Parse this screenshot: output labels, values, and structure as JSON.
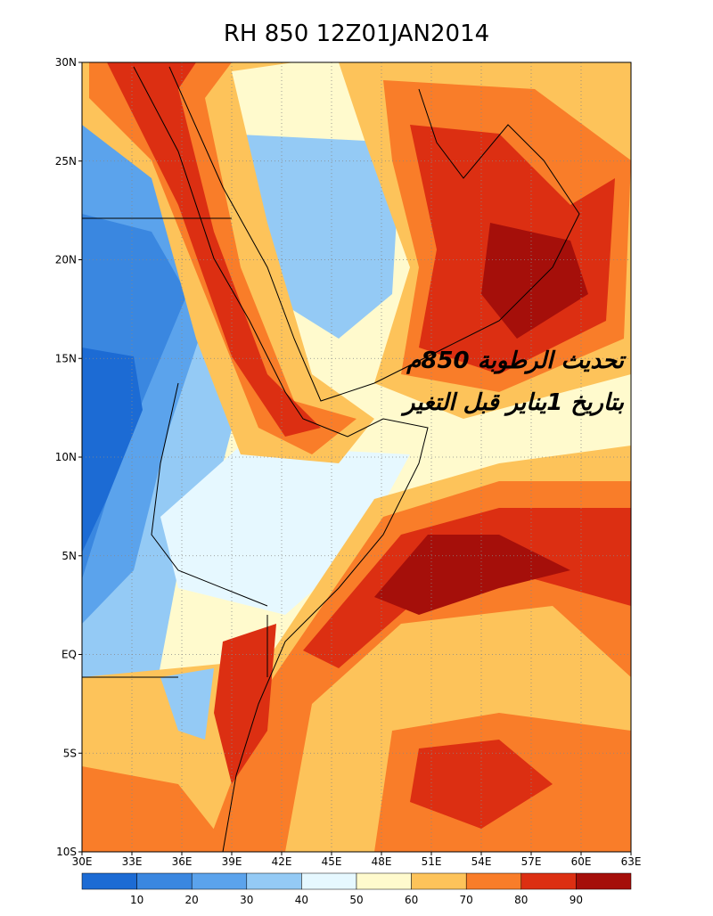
{
  "title": "RH 850 12Z01JAN2014",
  "lat_labels": [
    {
      "value": 30,
      "label": "30N"
    },
    {
      "value": 25,
      "label": "25N"
    },
    {
      "value": 20,
      "label": "20N"
    },
    {
      "value": 15,
      "label": "15N"
    },
    {
      "value": 10,
      "label": "10N"
    },
    {
      "value": 5,
      "label": "5N"
    },
    {
      "value": 0,
      "label": "EQ"
    },
    {
      "value": -5,
      "label": "5S"
    },
    {
      "value": -10,
      "label": "10S"
    }
  ],
  "lon_labels": [
    {
      "value": 30,
      "label": "30E"
    },
    {
      "value": 33,
      "label": "33E"
    },
    {
      "value": 36,
      "label": "36E"
    },
    {
      "value": 39,
      "label": "39E"
    },
    {
      "value": 42,
      "label": "42E"
    },
    {
      "value": 45,
      "label": "45E"
    },
    {
      "value": 48,
      "label": "48E"
    },
    {
      "value": 51,
      "label": "51E"
    },
    {
      "value": 54,
      "label": "54E"
    },
    {
      "value": 57,
      "label": "57E"
    },
    {
      "value": 60,
      "label": "60E"
    },
    {
      "value": 63,
      "label": "63E"
    }
  ],
  "lon_range": [
    30,
    63
  ],
  "lat_range": [
    -10,
    30
  ],
  "colorbar": {
    "levels": [
      10,
      20,
      30,
      40,
      50,
      60,
      70,
      80,
      90
    ],
    "colors": [
      "#1c6bd4",
      "#3a87e0",
      "#5ba3ec",
      "#94caf5",
      "#e6f8ff",
      "#fffacd",
      "#fdc35a",
      "#f97d29",
      "#dc2f12",
      "#a50f0a"
    ]
  },
  "annotation": [
    "تحديث الرطوبة 850م",
    "بتاريخ 1يناير قبل التغير"
  ]
}
